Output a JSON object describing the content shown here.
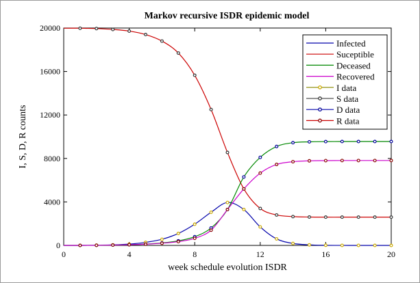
{
  "chart_data": {
    "type": "line",
    "title": "Markov recursive ISDR epidemic model",
    "xlabel": "week schedule evolution ISDR",
    "ylabel": "I, S, D, R counts",
    "xlim": [
      0,
      20
    ],
    "ylim": [
      0,
      20000
    ],
    "x_ticks": [
      0,
      4,
      8,
      12,
      16,
      20
    ],
    "x_tick_labels": [
      "0",
      "4",
      "8",
      "12",
      "16",
      "20"
    ],
    "y_ticks": [
      0,
      4000,
      8000,
      12000,
      16000,
      20000
    ],
    "y_tick_labels": [
      "0",
      "4000",
      "8000",
      "12000",
      "16000",
      "20000"
    ],
    "grid": false,
    "legend_position": "top-right",
    "x": [
      1,
      2,
      3,
      4,
      5,
      6,
      7,
      8,
      9,
      10,
      11,
      12,
      13,
      14,
      15,
      16,
      17,
      18,
      19,
      20
    ],
    "series": [
      {
        "name": "Infected",
        "kind": "line",
        "color": "#0000aa",
        "values": [
          0,
          20,
          50,
          120,
          280,
          560,
          1100,
          1950,
          3050,
          3950,
          3300,
          1700,
          600,
          180,
          50,
          12,
          3,
          1,
          0,
          0
        ]
      },
      {
        "name": "Suceptible",
        "kind": "line",
        "color": "#cc0000",
        "values": [
          19980,
          19950,
          19870,
          19720,
          19400,
          18800,
          17700,
          15650,
          12500,
          8550,
          5200,
          3400,
          2800,
          2650,
          2610,
          2600,
          2600,
          2600,
          2600,
          2600
        ]
      },
      {
        "name": "Deceased",
        "kind": "line",
        "color": "#008800",
        "values": [
          0,
          10,
          30,
          60,
          120,
          230,
          420,
          800,
          1600,
          3300,
          6300,
          8100,
          9100,
          9450,
          9530,
          9550,
          9560,
          9560,
          9560,
          9560
        ]
      },
      {
        "name": "Recovered",
        "kind": "line",
        "color": "#cc00cc",
        "values": [
          0,
          10,
          30,
          60,
          110,
          200,
          350,
          650,
          1400,
          3300,
          5200,
          6650,
          7450,
          7700,
          7780,
          7800,
          7810,
          7810,
          7810,
          7810
        ]
      },
      {
        "name": "I data",
        "kind": "markers",
        "color": "#ccaa00",
        "line_color": "#8a8a00",
        "values": [
          0,
          20,
          50,
          120,
          280,
          560,
          1100,
          1950,
          3050,
          3950,
          3300,
          1700,
          600,
          180,
          50,
          12,
          3,
          1,
          0,
          0
        ]
      },
      {
        "name": "S data",
        "kind": "markers",
        "color": "#333333",
        "line_color": "#555555",
        "values": [
          19980,
          19950,
          19870,
          19720,
          19400,
          18800,
          17700,
          15650,
          12500,
          8550,
          5200,
          3400,
          2800,
          2650,
          2610,
          2600,
          2600,
          2600,
          2600,
          2600
        ]
      },
      {
        "name": "D data",
        "kind": "markers",
        "color": "#000099",
        "line_color": "#0000aa",
        "values": [
          0,
          10,
          30,
          60,
          120,
          230,
          420,
          800,
          1600,
          3300,
          6300,
          8100,
          9100,
          9450,
          9530,
          9550,
          9560,
          9560,
          9560,
          9560
        ]
      },
      {
        "name": "R data",
        "kind": "markers",
        "color": "#880000",
        "line_color": "#cc0000",
        "values": [
          0,
          10,
          30,
          60,
          110,
          200,
          350,
          650,
          1400,
          3300,
          5200,
          6650,
          7450,
          7700,
          7780,
          7800,
          7810,
          7810,
          7810,
          7810
        ]
      }
    ]
  }
}
